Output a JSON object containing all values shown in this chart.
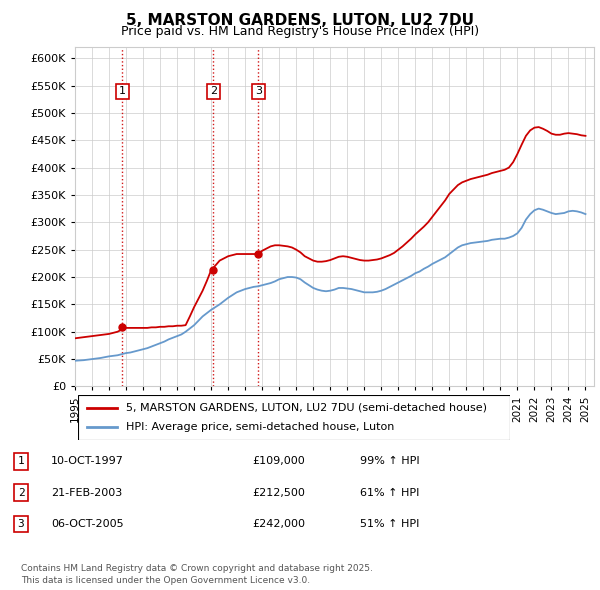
{
  "title": "5, MARSTON GARDENS, LUTON, LU2 7DU",
  "subtitle": "Price paid vs. HM Land Registry's House Price Index (HPI)",
  "footer": "Contains HM Land Registry data © Crown copyright and database right 2025.\nThis data is licensed under the Open Government Licence v3.0.",
  "legend_house": "5, MARSTON GARDENS, LUTON, LU2 7DU (semi-detached house)",
  "legend_hpi": "HPI: Average price, semi-detached house, Luton",
  "transactions": [
    {
      "num": 1,
      "date": "10-OCT-1997",
      "price": 109000,
      "hpi_pct": "99% ↑ HPI",
      "year": 1997.78
    },
    {
      "num": 2,
      "date": "21-FEB-2003",
      "price": 212500,
      "hpi_pct": "61% ↑ HPI",
      "year": 2003.13
    },
    {
      "num": 3,
      "date": "06-OCT-2005",
      "price": 242000,
      "hpi_pct": "51% ↑ HPI",
      "year": 2005.77
    }
  ],
  "house_color": "#cc0000",
  "hpi_color": "#6699cc",
  "vline_color": "#cc0000",
  "grid_color": "#cccccc",
  "ylim": [
    0,
    620000
  ],
  "yticks": [
    0,
    50000,
    100000,
    150000,
    200000,
    250000,
    300000,
    350000,
    400000,
    450000,
    500000,
    550000,
    600000
  ],
  "hpi_data": {
    "years": [
      1995,
      1995.25,
      1995.5,
      1995.75,
      1996,
      1996.25,
      1996.5,
      1996.75,
      1997,
      1997.25,
      1997.5,
      1997.75,
      1998,
      1998.25,
      1998.5,
      1998.75,
      1999,
      1999.25,
      1999.5,
      1999.75,
      2000,
      2000.25,
      2000.5,
      2000.75,
      2001,
      2001.25,
      2001.5,
      2001.75,
      2002,
      2002.25,
      2002.5,
      2002.75,
      2003,
      2003.25,
      2003.5,
      2003.75,
      2004,
      2004.25,
      2004.5,
      2004.75,
      2005,
      2005.25,
      2005.5,
      2005.75,
      2006,
      2006.25,
      2006.5,
      2006.75,
      2007,
      2007.25,
      2007.5,
      2007.75,
      2008,
      2008.25,
      2008.5,
      2008.75,
      2009,
      2009.25,
      2009.5,
      2009.75,
      2010,
      2010.25,
      2010.5,
      2010.75,
      2011,
      2011.25,
      2011.5,
      2011.75,
      2012,
      2012.25,
      2012.5,
      2012.75,
      2013,
      2013.25,
      2013.5,
      2013.75,
      2014,
      2014.25,
      2014.5,
      2014.75,
      2015,
      2015.25,
      2015.5,
      2015.75,
      2016,
      2016.25,
      2016.5,
      2016.75,
      2017,
      2017.25,
      2017.5,
      2017.75,
      2018,
      2018.25,
      2018.5,
      2018.75,
      2019,
      2019.25,
      2019.5,
      2019.75,
      2020,
      2020.25,
      2020.5,
      2020.75,
      2021,
      2021.25,
      2021.5,
      2021.75,
      2022,
      2022.25,
      2022.5,
      2022.75,
      2023,
      2023.25,
      2023.5,
      2023.75,
      2024,
      2024.25,
      2024.5,
      2024.75,
      2025
    ],
    "values": [
      47000,
      47500,
      48000,
      49000,
      50000,
      51000,
      52000,
      53500,
      55000,
      56000,
      57000,
      59000,
      61000,
      62000,
      64000,
      66000,
      68000,
      70000,
      73000,
      76000,
      79000,
      82000,
      86000,
      89000,
      92000,
      95000,
      100000,
      106000,
      112000,
      120000,
      128000,
      134000,
      140000,
      145000,
      150000,
      156000,
      162000,
      167000,
      172000,
      175000,
      178000,
      180000,
      182000,
      183000,
      185000,
      187000,
      189000,
      192000,
      196000,
      198000,
      200000,
      200000,
      199000,
      196000,
      190000,
      185000,
      180000,
      177000,
      175000,
      174000,
      175000,
      177000,
      180000,
      180000,
      179000,
      178000,
      176000,
      174000,
      172000,
      172000,
      172000,
      173000,
      175000,
      178000,
      182000,
      186000,
      190000,
      194000,
      198000,
      202000,
      207000,
      210000,
      215000,
      219000,
      224000,
      228000,
      232000,
      236000,
      242000,
      248000,
      254000,
      258000,
      260000,
      262000,
      263000,
      264000,
      265000,
      266000,
      268000,
      269000,
      270000,
      270000,
      272000,
      275000,
      280000,
      290000,
      305000,
      315000,
      322000,
      325000,
      323000,
      320000,
      317000,
      315000,
      316000,
      317000,
      320000,
      321000,
      320000,
      318000,
      315000
    ]
  },
  "house_data": {
    "years": [
      1995,
      1995.25,
      1995.5,
      1995.75,
      1996,
      1996.25,
      1996.5,
      1996.75,
      1997,
      1997.25,
      1997.5,
      1997.75,
      1998,
      1998.25,
      1998.5,
      1998.75,
      1999,
      1999.25,
      1999.5,
      1999.75,
      2000,
      2000.25,
      2000.5,
      2000.75,
      2001,
      2001.25,
      2001.5,
      2001.75,
      2002,
      2002.25,
      2002.5,
      2002.75,
      2003,
      2003.25,
      2003.5,
      2003.75,
      2004,
      2004.25,
      2004.5,
      2004.75,
      2005,
      2005.25,
      2005.5,
      2005.75,
      2006,
      2006.25,
      2006.5,
      2006.75,
      2007,
      2007.25,
      2007.5,
      2007.75,
      2008,
      2008.25,
      2008.5,
      2008.75,
      2009,
      2009.25,
      2009.5,
      2009.75,
      2010,
      2010.25,
      2010.5,
      2010.75,
      2011,
      2011.25,
      2011.5,
      2011.75,
      2012,
      2012.25,
      2012.5,
      2012.75,
      2013,
      2013.25,
      2013.5,
      2013.75,
      2014,
      2014.25,
      2014.5,
      2014.75,
      2015,
      2015.25,
      2015.5,
      2015.75,
      2016,
      2016.25,
      2016.5,
      2016.75,
      2017,
      2017.25,
      2017.5,
      2017.75,
      2018,
      2018.25,
      2018.5,
      2018.75,
      2019,
      2019.25,
      2019.5,
      2019.75,
      2020,
      2020.25,
      2020.5,
      2020.75,
      2021,
      2021.25,
      2021.5,
      2021.75,
      2022,
      2022.25,
      2022.5,
      2022.75,
      2023,
      2023.25,
      2023.5,
      2023.75,
      2024,
      2024.25,
      2024.5,
      2024.75,
      2025
    ],
    "values": [
      88000,
      89000,
      90000,
      91000,
      92000,
      93000,
      94000,
      95000,
      96000,
      98000,
      100000,
      104000,
      107000,
      107000,
      107000,
      107000,
      107000,
      107000,
      108000,
      108000,
      109000,
      109000,
      110000,
      110000,
      111000,
      111000,
      112000,
      128000,
      145000,
      160000,
      175000,
      193000,
      212500,
      221000,
      230000,
      234000,
      238000,
      240000,
      242000,
      242000,
      242000,
      242000,
      242000,
      242000,
      248000,
      252000,
      256000,
      258000,
      258000,
      257000,
      256000,
      254000,
      250000,
      245000,
      238000,
      234000,
      230000,
      228000,
      228000,
      229000,
      231000,
      234000,
      237000,
      238000,
      237000,
      235000,
      233000,
      231000,
      230000,
      230000,
      231000,
      232000,
      234000,
      237000,
      240000,
      244000,
      250000,
      256000,
      263000,
      270000,
      278000,
      285000,
      292000,
      300000,
      310000,
      320000,
      330000,
      340000,
      352000,
      360000,
      368000,
      373000,
      376000,
      379000,
      381000,
      383000,
      385000,
      387000,
      390000,
      392000,
      394000,
      396000,
      400000,
      410000,
      425000,
      442000,
      458000,
      468000,
      473000,
      474000,
      471000,
      467000,
      462000,
      460000,
      460000,
      462000,
      463000,
      462000,
      461000,
      459000,
      458000
    ]
  },
  "xlim": [
    1995,
    2025.5
  ],
  "xticks": [
    1995,
    1996,
    1997,
    1998,
    1999,
    2000,
    2001,
    2002,
    2003,
    2004,
    2005,
    2006,
    2007,
    2008,
    2009,
    2010,
    2011,
    2012,
    2013,
    2014,
    2015,
    2016,
    2017,
    2018,
    2019,
    2020,
    2021,
    2022,
    2023,
    2024,
    2025
  ]
}
